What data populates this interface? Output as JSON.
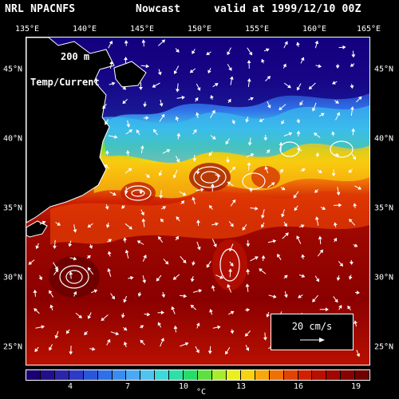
{
  "header": {
    "model": "NRL NPACNFS",
    "product": "Nowcast",
    "valid": "valid at 1999/12/10 00Z"
  },
  "longitudes": [
    "135°E",
    "140°E",
    "145°E",
    "150°E",
    "155°E",
    "160°E",
    "165°E"
  ],
  "latitudes": [
    "45°N",
    "40°N",
    "35°N",
    "30°N",
    "25°N"
  ],
  "map_labels": {
    "depth": "200 m",
    "fields": "Temp/Current"
  },
  "vector_legend": "20 cm/s",
  "colorbar": {
    "ticks": [
      "4",
      "7",
      "10",
      "13",
      "16",
      "19"
    ],
    "unit": "°C",
    "colors": [
      "#1a0070",
      "#22108a",
      "#2b25a8",
      "#2c3cc4",
      "#2a56d8",
      "#2f70e6",
      "#3a8cf0",
      "#49a9f4",
      "#50c3f0",
      "#3ed8d8",
      "#2ee0a8",
      "#28dc6a",
      "#60e040",
      "#a8ec30",
      "#e8f020",
      "#f8d410",
      "#f8a80c",
      "#f07008",
      "#e04404",
      "#d02202",
      "#b81000",
      "#9e0800",
      "#860400",
      "#700000"
    ]
  },
  "colors": {
    "deep_sea": "#13007a",
    "warm_sea": "#8a0000",
    "land": "#000000"
  }
}
